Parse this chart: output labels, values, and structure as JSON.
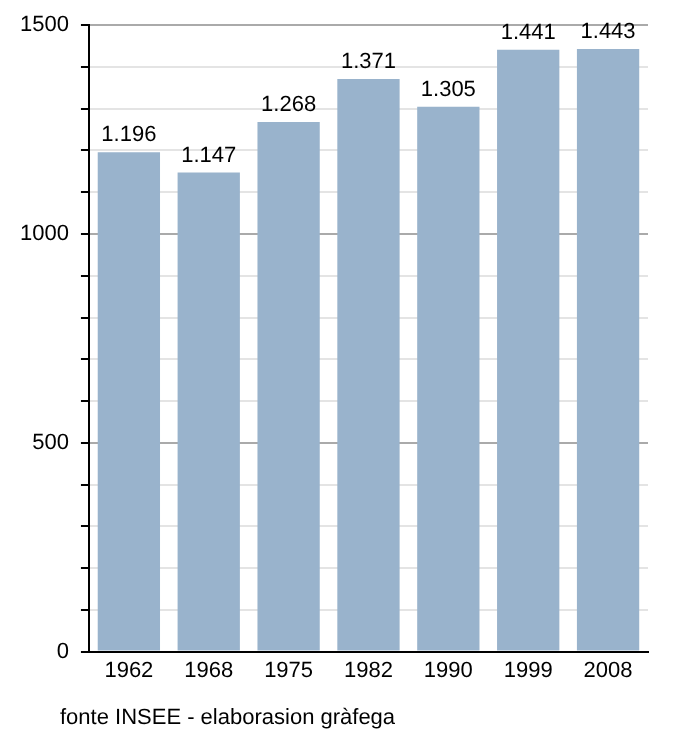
{
  "chart_data": {
    "type": "bar",
    "categories": [
      "1962",
      "1968",
      "1975",
      "1982",
      "1990",
      "1999",
      "2008"
    ],
    "values": [
      1196,
      1147,
      1268,
      1371,
      1305,
      1441,
      1443
    ],
    "value_labels": [
      "1.196",
      "1.147",
      "1.268",
      "1.371",
      "1.305",
      "1.441",
      "1.443"
    ],
    "color": "#99b3cc",
    "ylim": [
      0,
      1500
    ],
    "yticks": [
      0,
      {
        "value": 100,
        "label": null
      },
      {
        "value": 200,
        "label": null
      },
      {
        "value": 300,
        "label": null
      },
      {
        "value": 400,
        "label": null
      },
      500,
      {
        "value": 600,
        "label": null
      },
      {
        "value": 700,
        "label": null
      },
      {
        "value": 800,
        "label": null
      },
      {
        "value": 900,
        "label": null
      },
      1000,
      {
        "value": 1100,
        "label": null
      },
      {
        "value": 1200,
        "label": null
      },
      {
        "value": 1300,
        "label": null
      },
      {
        "value": 1400,
        "label": null
      },
      1500
    ],
    "grid": "y",
    "legend": false,
    "annotations": [
      "fonte INSEE - elaborasion gràfega"
    ]
  }
}
